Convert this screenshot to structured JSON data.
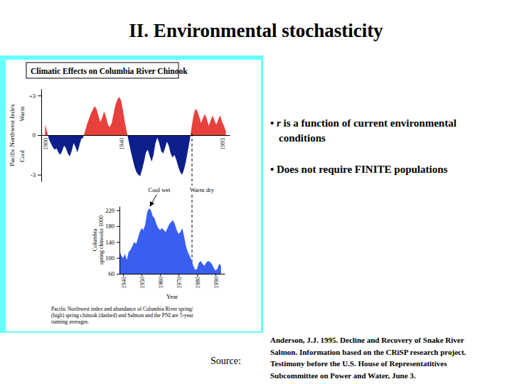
{
  "slide": {
    "title": "II. Environmental stochasticity",
    "figure_title": "Climatic Effects on Columbia River Chinook",
    "caption": [
      "Pacific Northwest index and abundance of Columbia River spring/",
      "(high) spring chinook (dashed) and Salmon and the PNI are 5-year",
      "running averages."
    ],
    "bullets": [
      {
        "lines": [
          [
            {
              "text": "• "
            },
            {
              "text": "r",
              "italic": true
            },
            {
              "text": " is a function of current environmental"
            }
          ],
          [
            {
              "text": "conditions"
            }
          ]
        ]
      },
      {
        "lines": [
          [
            {
              "text": "• Does not require FINITE populations"
            }
          ]
        ]
      }
    ],
    "source_label": "Source:",
    "citation": [
      "Anderson, J.J. 1995. Decline and Recovery of Snake River",
      "Salmon. Information based on the CRiSP research project.",
      "Testimony before the U.S. House of Representatitives",
      "Subcommittee on Power and Water, June 3."
    ]
  },
  "chart_data": [
    {
      "type": "area",
      "y_label": "Pacific Northwest Index",
      "annotations": [
        "Warm",
        "Cool",
        "Cool wet",
        "Warm dry"
      ],
      "x": [
        1900,
        1901,
        1902,
        1903,
        1904,
        1905,
        1906,
        1907,
        1908,
        1909,
        1910,
        1911,
        1912,
        1913,
        1914,
        1915,
        1916,
        1917,
        1918,
        1919,
        1920,
        1921,
        1922,
        1923,
        1924,
        1925,
        1926,
        1927,
        1928,
        1929,
        1930,
        1931,
        1932,
        1933,
        1934,
        1935,
        1936,
        1937,
        1938,
        1939,
        1940,
        1941,
        1942,
        1943,
        1944,
        1945,
        1946,
        1947,
        1948,
        1949,
        1950,
        1951,
        1952,
        1953,
        1954,
        1955,
        1956,
        1957,
        1958,
        1959,
        1960,
        1961,
        1962,
        1963,
        1964,
        1965,
        1966,
        1967,
        1968,
        1969,
        1970,
        1971,
        1972,
        1973,
        1974,
        1975,
        1976,
        1977,
        1978,
        1979,
        1980,
        1981,
        1982,
        1983,
        1984,
        1985,
        1986,
        1987,
        1988,
        1989,
        1990,
        1991,
        1992,
        1993,
        1994,
        1995
      ],
      "series": [
        {
          "values": [
            0.8,
            0.3,
            -0.3,
            -0.6,
            -0.9,
            -1.1,
            -1.0,
            -1.3,
            -1.5,
            -1.2,
            -0.8,
            -1.0,
            -1.4,
            -1.6,
            -1.2,
            -0.6,
            -0.9,
            -1.3,
            -0.8,
            -0.3,
            -0.2,
            0.3,
            0.8,
            1.2,
            1.6,
            1.9,
            2.2,
            2.0,
            1.5,
            1.0,
            1.3,
            1.8,
            1.4,
            0.8,
            0.6,
            0.9,
            1.6,
            2.3,
            2.7,
            2.9,
            2.6,
            1.8,
            0.9,
            0.2,
            -0.5,
            -1.2,
            -1.8,
            -2.4,
            -2.8,
            -3.0,
            -3.1,
            -2.6,
            -2.0,
            -1.3,
            -1.1,
            -1.6,
            -2.0,
            -1.5,
            -0.6,
            -0.2,
            -0.6,
            -1.2,
            -1.4,
            -1.0,
            -0.5,
            -0.8,
            -1.4,
            -1.7,
            -1.5,
            -1.9,
            -2.4,
            -2.8,
            -3.0,
            -2.6,
            -2.0,
            -1.2,
            -0.4,
            0.6,
            1.5,
            2.0,
            1.8,
            1.4,
            0.9,
            1.3,
            1.6,
            1.2,
            0.7,
            1.1,
            1.5,
            1.1,
            0.8,
            1.2,
            1.5,
            1.0,
            0.7,
            0.3
          ],
          "colors": [
            "#e8403c",
            "#0d1f8c"
          ]
        }
      ],
      "xlim": [
        1898,
        1997
      ],
      "xticks": [
        1900,
        1940,
        1993
      ],
      "ylim": [
        -3.5,
        3.5
      ],
      "yticks": [
        {
          "value": 3,
          "label": "+3"
        },
        0,
        -3
      ]
    },
    {
      "type": "area",
      "x_label": "Year",
      "y_label": [
        "Columbia",
        "spring chinooks 1000"
      ],
      "x": [
        1938,
        1939,
        1940,
        1941,
        1942,
        1943,
        1944,
        1945,
        1946,
        1947,
        1948,
        1949,
        1950,
        1951,
        1952,
        1953,
        1954,
        1955,
        1956,
        1957,
        1958,
        1959,
        1960,
        1961,
        1962,
        1963,
        1964,
        1965,
        1966,
        1967,
        1968,
        1969,
        1970,
        1971,
        1972,
        1973,
        1974,
        1975,
        1976,
        1977,
        1978,
        1979,
        1980,
        1981,
        1982,
        1983,
        1984,
        1985,
        1986,
        1987,
        1988,
        1989,
        1990,
        1991,
        1992,
        1993
      ],
      "series": [
        {
          "values": [
            120,
            105,
            100,
            110,
            95,
            115,
            120,
            130,
            140,
            135,
            150,
            165,
            175,
            170,
            185,
            215,
            225,
            220,
            205,
            200,
            185,
            175,
            170,
            175,
            170,
            165,
            175,
            185,
            190,
            195,
            185,
            170,
            160,
            165,
            175,
            155,
            130,
            115,
            105,
            95,
            80,
            70,
            72,
            88,
            92,
            85,
            80,
            88,
            92,
            90,
            85,
            75,
            68,
            72,
            85,
            80
          ],
          "color": "#3a5ff0"
        }
      ],
      "xlim": [
        1938,
        1995
      ],
      "xticks": [
        1940,
        1950,
        1960,
        1970,
        1980,
        1990
      ],
      "ylim": [
        60,
        230
      ],
      "yticks": [
        60,
        100,
        140,
        180,
        220
      ]
    }
  ]
}
